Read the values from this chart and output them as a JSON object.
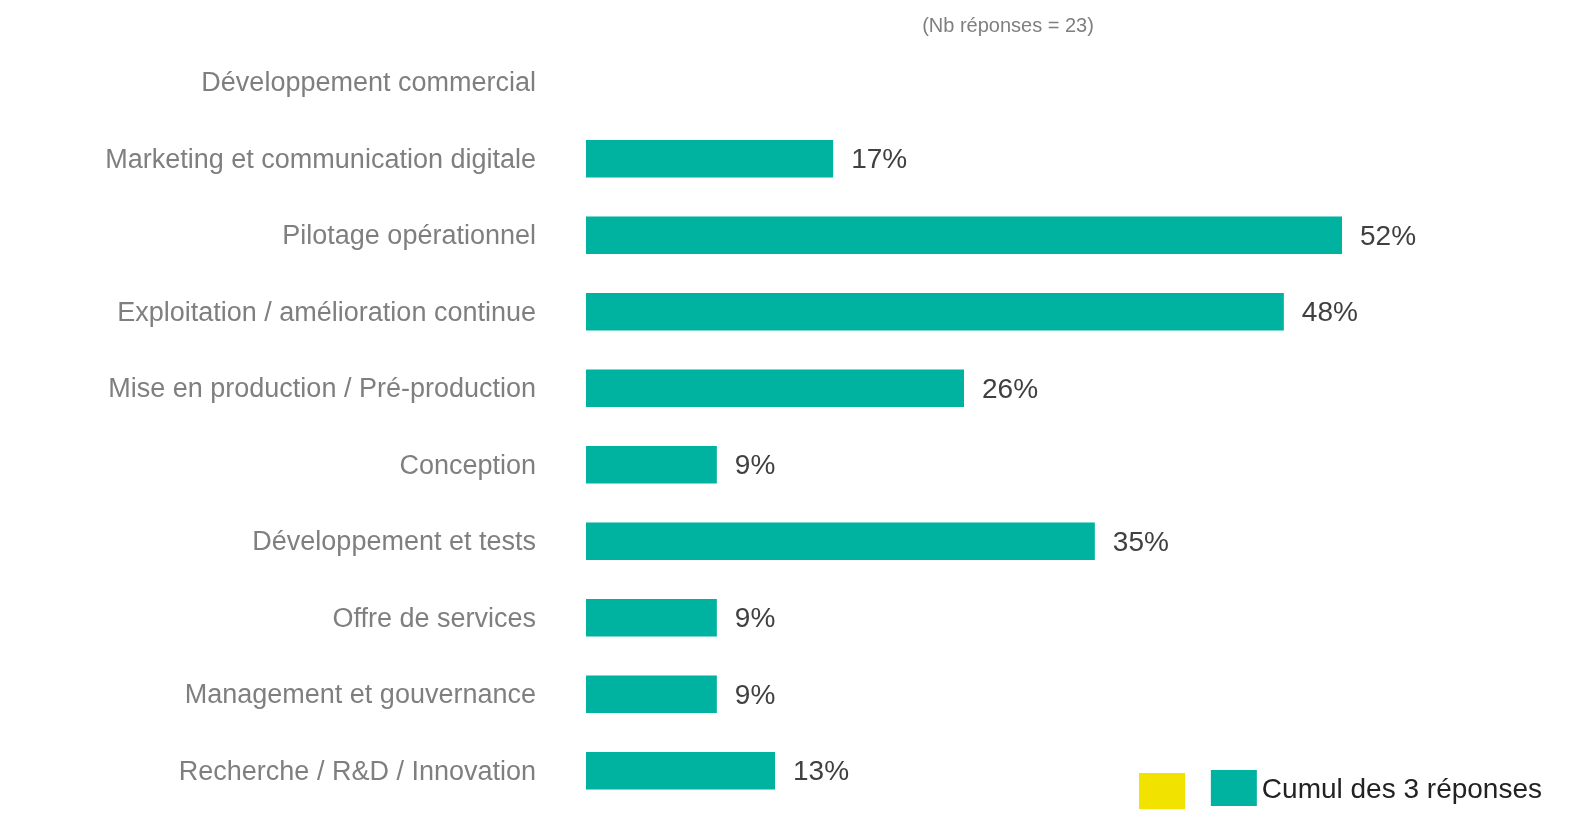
{
  "chart_data": {
    "type": "bar",
    "orientation": "horizontal",
    "subtitle": "(Nb réponses = 23)",
    "categories": [
      "Développement commercial",
      "Marketing et communication digitale",
      "Pilotage opérationnel",
      "Exploitation / amélioration continue",
      "Mise en production / Pré-production",
      "Conception",
      "Développement et tests",
      "Offre de services",
      "Management et gouvernance",
      "Recherche / R&D / Innovation"
    ],
    "series": [
      {
        "name": "Cumul des 3 réponses",
        "color": "#00b2a0",
        "values": [
          null,
          17,
          52,
          48,
          26,
          9,
          35,
          9,
          9,
          13
        ],
        "value_labels": [
          null,
          "17%",
          "52%",
          "48%",
          "26%",
          "9%",
          "35%",
          "9%",
          "9%",
          "13%"
        ]
      }
    ],
    "legend": "bottom right"
  }
}
